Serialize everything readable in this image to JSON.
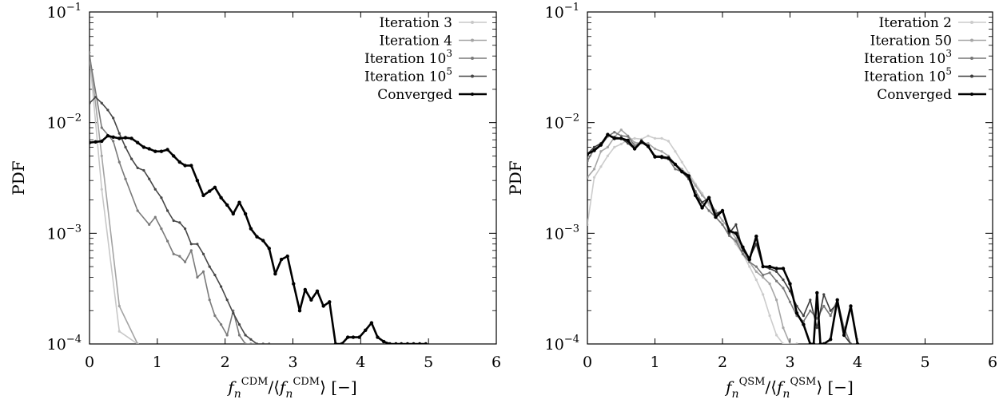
{
  "chart_data": [
    {
      "type": "line",
      "xlabel": "f_n^CDM / ⟨f_n^CDM⟩ [−]",
      "ylabel": "PDF",
      "xlim": [
        0,
        6
      ],
      "ylim": [
        0.0001,
        0.1
      ],
      "yscale": "log",
      "x_ticks": [
        "0",
        "1",
        "2",
        "3",
        "4",
        "5",
        "6"
      ],
      "y_ticks": [
        {
          "base": "10",
          "exp": "−1"
        },
        {
          "base": "10",
          "exp": "−2"
        },
        {
          "base": "10",
          "exp": "−3"
        },
        {
          "base": "10",
          "exp": "−4"
        }
      ],
      "legend_position": "top-right",
      "series": [
        {
          "name": "Iteration 3",
          "color": "#c8c8c8",
          "x": [
            0,
            0.18,
            0.44,
            0.71
          ],
          "y": [
            0.04,
            0.0025,
            0.00013,
            0.0001
          ]
        },
        {
          "name": "Iteration 4",
          "color": "#a4a4a4",
          "x": [
            0,
            0.18,
            0.44,
            0.71
          ],
          "y": [
            0.043,
            0.005,
            0.00022,
            0.0001
          ]
        },
        {
          "name": "Iteration 10³",
          "color": "#7a7a7a",
          "x": [
            0,
            0.18,
            0.35,
            0.44,
            0.53,
            0.71,
            0.88,
            0.97,
            1.06,
            1.15,
            1.24,
            1.33,
            1.41,
            1.5,
            1.59,
            1.68,
            1.77,
            1.85,
            1.94,
            2.03,
            2.12,
            2.21,
            2.3,
            2.38,
            2.47,
            2.56,
            2.65
          ],
          "y": [
            0.04,
            0.009,
            0.0068,
            0.0044,
            0.0031,
            0.0016,
            0.0012,
            0.0014,
            0.0011,
            0.00085,
            0.00065,
            0.00062,
            0.00055,
            0.0007,
            0.0004,
            0.00045,
            0.00025,
            0.00018,
            0.00015,
            0.00012,
            0.0002,
            0.00012,
            0.0001,
            0.0001,
            0.0001,
            0.0001,
            0.0001
          ]
        },
        {
          "name": "Iteration 10⁵",
          "color": "#474747",
          "x": [
            0,
            0.09,
            0.18,
            0.27,
            0.35,
            0.44,
            0.53,
            0.62,
            0.71,
            0.8,
            0.88,
            0.97,
            1.06,
            1.15,
            1.24,
            1.33,
            1.41,
            1.5,
            1.59,
            1.68,
            1.77,
            1.85,
            1.94,
            2.03,
            2.12,
            2.21,
            2.3,
            2.38,
            2.47,
            2.56,
            2.65
          ],
          "y": [
            0.015,
            0.017,
            0.015,
            0.013,
            0.011,
            0.008,
            0.006,
            0.0047,
            0.0039,
            0.0037,
            0.0031,
            0.0025,
            0.0021,
            0.0016,
            0.0013,
            0.00125,
            0.0011,
            0.0008,
            0.0008,
            0.00065,
            0.0005,
            0.00042,
            0.00033,
            0.00025,
            0.00019,
            0.00015,
            0.00012,
            0.00011,
            0.0001,
            0.0001,
            0.0001
          ]
        },
        {
          "name": "Converged",
          "color": "#000000",
          "x": [
            0,
            0.09,
            0.18,
            0.27,
            0.35,
            0.44,
            0.53,
            0.62,
            0.71,
            0.8,
            0.88,
            0.97,
            1.06,
            1.15,
            1.24,
            1.33,
            1.41,
            1.5,
            1.59,
            1.68,
            1.77,
            1.85,
            1.94,
            2.03,
            2.12,
            2.21,
            2.3,
            2.38,
            2.47,
            2.56,
            2.65,
            2.74,
            2.83,
            2.92,
            3.01,
            3.1,
            3.18,
            3.27,
            3.36,
            3.45,
            3.54,
            3.63,
            3.72,
            3.81,
            3.89,
            3.98,
            4.07,
            4.16,
            4.25,
            4.34,
            4.43,
            4.52,
            4.6,
            4.69,
            4.78,
            4.87,
            4.96
          ],
          "y": [
            0.0066,
            0.0067,
            0.0068,
            0.0076,
            0.0074,
            0.0072,
            0.0073,
            0.0072,
            0.0066,
            0.006,
            0.0058,
            0.0055,
            0.0055,
            0.0057,
            0.005,
            0.0044,
            0.0041,
            0.0041,
            0.003,
            0.0022,
            0.0024,
            0.0026,
            0.0021,
            0.0018,
            0.0015,
            0.0019,
            0.0015,
            0.0011,
            0.00093,
            0.00086,
            0.00073,
            0.00043,
            0.00058,
            0.00062,
            0.00035,
            0.0002,
            0.00031,
            0.00025,
            0.0003,
            0.00022,
            0.00024,
            0.0001,
            0.0001,
            0.000115,
            0.000115,
            0.000115,
            0.000133,
            0.000155,
            0.000115,
            0.000105,
            0.0001,
            0.0001,
            0.0001,
            0.0001,
            0.0001,
            0.0001,
            0.0001
          ]
        }
      ]
    },
    {
      "type": "line",
      "xlabel": "f_n^QSM / ⟨f_n^QSM⟩ [−]",
      "ylabel": "PDF",
      "xlim": [
        0,
        6
      ],
      "ylim": [
        0.0001,
        0.1
      ],
      "yscale": "log",
      "x_ticks": [
        "0",
        "1",
        "2",
        "3",
        "4",
        "5",
        "6"
      ],
      "y_ticks": [
        {
          "base": "10",
          "exp": "−1"
        },
        {
          "base": "10",
          "exp": "−2"
        },
        {
          "base": "10",
          "exp": "−3"
        },
        {
          "base": "10",
          "exp": "−4"
        }
      ],
      "legend_position": "top-right",
      "series": [
        {
          "name": "Iteration 2",
          "color": "#cccccc",
          "x": [
            0,
            0.1,
            0.2,
            0.3,
            0.4,
            0.5,
            0.6,
            0.7,
            0.8,
            0.9,
            1.0,
            1.1,
            1.2,
            1.3,
            1.4,
            1.5,
            1.6,
            1.7,
            1.8,
            1.9,
            2.0,
            2.1,
            2.2,
            2.3,
            2.4,
            2.5,
            2.6,
            2.7,
            2.8,
            2.9,
            3.0
          ],
          "y": [
            0.0012,
            0.0032,
            0.004,
            0.005,
            0.006,
            0.0064,
            0.007,
            0.0072,
            0.0071,
            0.0076,
            0.0072,
            0.0072,
            0.0068,
            0.0055,
            0.0044,
            0.0035,
            0.0028,
            0.0023,
            0.0018,
            0.0014,
            0.0012,
            0.001,
            0.0008,
            0.00065,
            0.0005,
            0.00038,
            0.00028,
            0.00018,
            0.00012,
            0.0001,
            0.0001
          ]
        },
        {
          "name": "Iteration 50",
          "color": "#a6a6a6",
          "x": [
            0,
            0.1,
            0.2,
            0.3,
            0.4,
            0.5,
            0.6,
            0.7,
            0.8,
            0.9,
            1.0,
            1.1,
            1.2,
            1.3,
            1.4,
            1.5,
            1.6,
            1.7,
            1.8,
            1.9,
            2.0,
            2.1,
            2.2,
            2.3,
            2.4,
            2.5,
            2.6,
            2.7,
            2.8,
            2.9,
            3.0,
            3.1
          ],
          "y": [
            0.0032,
            0.0038,
            0.0055,
            0.006,
            0.0074,
            0.0086,
            0.0076,
            0.0066,
            0.0065,
            0.0065,
            0.0058,
            0.0055,
            0.005,
            0.0042,
            0.0038,
            0.0033,
            0.0027,
            0.0022,
            0.0019,
            0.0016,
            0.0013,
            0.0011,
            0.0009,
            0.0007,
            0.00055,
            0.00045,
            0.0004,
            0.00035,
            0.00025,
            0.00014,
            0.0001,
            0.0001
          ]
        },
        {
          "name": "Iteration 10³",
          "color": "#777777",
          "x": [
            0,
            0.1,
            0.2,
            0.3,
            0.4,
            0.5,
            0.6,
            0.7,
            0.8,
            0.9,
            1.0,
            1.1,
            1.2,
            1.3,
            1.4,
            1.5,
            1.6,
            1.7,
            1.8,
            1.9,
            2.0,
            2.1,
            2.2,
            2.3,
            2.4,
            2.5,
            2.6,
            2.7,
            2.8,
            2.9,
            3.0,
            3.1,
            3.2,
            3.3,
            3.4,
            3.5,
            3.6,
            3.7,
            3.8,
            3.9
          ],
          "y": [
            0.0045,
            0.0058,
            0.0062,
            0.0075,
            0.0082,
            0.0076,
            0.0075,
            0.0062,
            0.0067,
            0.0062,
            0.005,
            0.005,
            0.0047,
            0.0038,
            0.0036,
            0.0031,
            0.0024,
            0.0019,
            0.0016,
            0.0014,
            0.0012,
            0.00095,
            0.00085,
            0.00065,
            0.00055,
            0.0005,
            0.00042,
            0.00044,
            0.00037,
            0.00032,
            0.00024,
            0.00018,
            0.00016,
            0.0002,
            0.00017,
            0.00022,
            0.00018,
            0.00025,
            0.00014,
            0.0001
          ]
        },
        {
          "name": "Iteration 10⁵",
          "color": "#3d3d3d",
          "x": [
            0,
            0.1,
            0.2,
            0.3,
            0.4,
            0.5,
            0.6,
            0.7,
            0.8,
            0.9,
            1.0,
            1.1,
            1.2,
            1.3,
            1.4,
            1.5,
            1.6,
            1.7,
            1.8,
            1.9,
            2.0,
            2.1,
            2.2,
            2.3,
            2.4,
            2.5,
            2.6,
            2.7,
            2.8,
            2.9,
            3.0,
            3.1,
            3.2,
            3.3,
            3.4,
            3.5,
            3.6,
            3.7,
            3.8,
            3.9
          ],
          "y": [
            0.0052,
            0.006,
            0.0065,
            0.0077,
            0.0074,
            0.0072,
            0.0065,
            0.0058,
            0.0069,
            0.0062,
            0.005,
            0.0048,
            0.0047,
            0.0042,
            0.0036,
            0.0031,
            0.0022,
            0.0019,
            0.0021,
            0.0015,
            0.0016,
            0.001,
            0.0012,
            0.0007,
            0.0006,
            0.0008,
            0.0005,
            0.00048,
            0.00045,
            0.00038,
            0.0003,
            0.00022,
            0.00018,
            0.00025,
            0.00014,
            0.00028,
            0.0002,
            0.00023,
            0.00012,
            0.0001
          ]
        },
        {
          "name": "Converged",
          "color": "#000000",
          "x": [
            0,
            0.1,
            0.2,
            0.3,
            0.4,
            0.5,
            0.6,
            0.7,
            0.8,
            0.9,
            1.0,
            1.1,
            1.2,
            1.3,
            1.4,
            1.5,
            1.6,
            1.7,
            1.8,
            1.9,
            2.0,
            2.1,
            2.2,
            2.3,
            2.4,
            2.5,
            2.6,
            2.7,
            2.8,
            2.9,
            3.0,
            3.1,
            3.2,
            3.3,
            3.35,
            3.4,
            3.45,
            3.5,
            3.6,
            3.7,
            3.8,
            3.9,
            4.0
          ],
          "y": [
            0.0052,
            0.0056,
            0.0063,
            0.0078,
            0.0072,
            0.0072,
            0.0069,
            0.0058,
            0.0067,
            0.0061,
            0.0049,
            0.0049,
            0.0048,
            0.0042,
            0.0036,
            0.0033,
            0.0022,
            0.0017,
            0.0021,
            0.0014,
            0.0016,
            0.00105,
            0.001,
            0.00075,
            0.00058,
            0.00094,
            0.0005,
            0.0005,
            0.00048,
            0.00048,
            0.00035,
            0.00019,
            0.00015,
            0.0001,
            0.0001,
            0.00029,
            0.0001,
            0.0001,
            0.00011,
            0.00025,
            0.00012,
            0.00022,
            0.0001
          ]
        }
      ]
    }
  ]
}
